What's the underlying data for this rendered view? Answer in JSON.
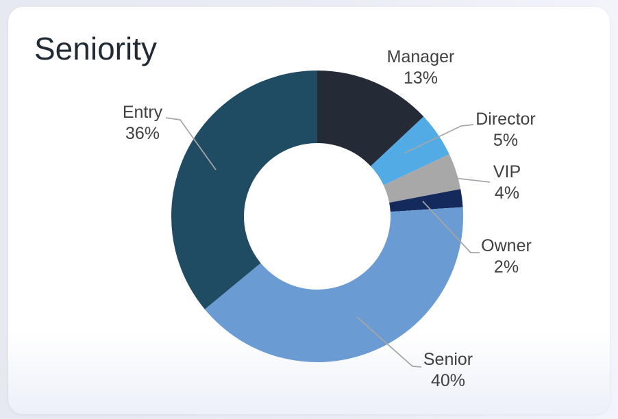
{
  "card": {
    "title": "Seniority"
  },
  "chart_data": {
    "type": "pie",
    "subtype": "donut",
    "title": "Seniority",
    "start_angle_deg": 0,
    "direction": "clockwise",
    "inner_radius_ratio": 0.5,
    "legend_position": "none",
    "labels_position": "outside-with-leader-lines",
    "categories": [
      "Manager",
      "Director",
      "VIP",
      "Owner",
      "Senior",
      "Entry"
    ],
    "values": [
      13,
      5,
      4,
      2,
      40,
      36
    ],
    "unit": "%",
    "colors": [
      "#242B37",
      "#52ABE4",
      "#A8A8A9",
      "#14295C",
      "#6A9BD2",
      "#1F4B63"
    ],
    "display_labels": [
      {
        "label": "Manager",
        "value": "13%"
      },
      {
        "label": "Director",
        "value": "5%"
      },
      {
        "label": "VIP",
        "value": "4%"
      },
      {
        "label": "Owner",
        "value": "2%"
      },
      {
        "label": "Senior",
        "value": "40%"
      },
      {
        "label": "Entry",
        "value": "36%"
      }
    ]
  },
  "palette": {
    "page_background": "#EBEDF4",
    "card_background": "#FFFFFF",
    "title_text": "#222B35",
    "label_text": "#3F4040",
    "leader_line": "#A6A6A6"
  }
}
